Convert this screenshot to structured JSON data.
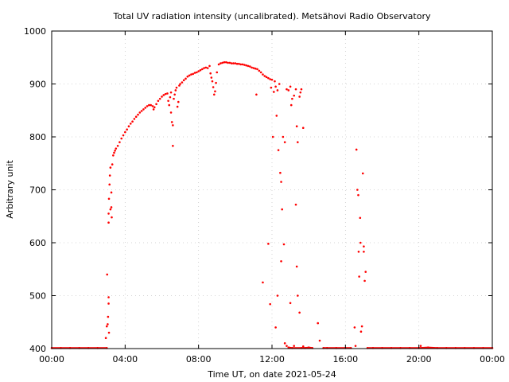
{
  "chart_data": {
    "type": "scatter",
    "title": "Total UV radiation intensity (uncalibrated). Metsähovi Radio Observatory",
    "xlabel": "Time UT, on date 2021-05-24",
    "ylabel": "Arbitrary unit",
    "xlim": [
      "00:00",
      "24:00"
    ],
    "ylim": [
      400,
      1000
    ],
    "x_ticks": [
      "00:00",
      "04:00",
      "08:00",
      "12:00",
      "16:00",
      "20:00",
      "00:00"
    ],
    "y_ticks": [
      400,
      500,
      600,
      700,
      800,
      900,
      1000
    ],
    "grid": true,
    "marker_color": "#ff0000",
    "series": [
      {
        "x_unit": "hours UT",
        "points": [
          [
            0.0,
            401
          ],
          [
            0.5,
            401
          ],
          [
            1.0,
            401
          ],
          [
            1.5,
            401
          ],
          [
            2.0,
            401
          ],
          [
            2.5,
            401
          ],
          [
            3.0,
            401
          ],
          [
            2.95,
            420
          ],
          [
            3.0,
            442
          ],
          [
            3.02,
            540
          ],
          [
            3.05,
            446
          ],
          [
            3.07,
            460
          ],
          [
            3.1,
            485
          ],
          [
            3.1,
            497
          ],
          [
            3.12,
            430
          ],
          [
            3.1,
            655
          ],
          [
            3.1,
            638
          ],
          [
            3.12,
            683
          ],
          [
            3.15,
            710
          ],
          [
            3.17,
            727
          ],
          [
            3.2,
            742
          ],
          [
            3.2,
            663
          ],
          [
            3.25,
            695
          ],
          [
            3.25,
            667
          ],
          [
            3.27,
            648
          ],
          [
            3.3,
            748
          ],
          [
            3.35,
            765
          ],
          [
            3.4,
            770
          ],
          [
            3.45,
            774
          ],
          [
            3.5,
            778
          ],
          [
            3.6,
            783
          ],
          [
            3.7,
            790
          ],
          [
            3.8,
            797
          ],
          [
            3.9,
            803
          ],
          [
            4.0,
            809
          ],
          [
            4.1,
            814
          ],
          [
            4.2,
            820
          ],
          [
            4.3,
            825
          ],
          [
            4.4,
            829
          ],
          [
            4.5,
            834
          ],
          [
            4.6,
            838
          ],
          [
            4.7,
            842
          ],
          [
            4.8,
            846
          ],
          [
            4.9,
            849
          ],
          [
            5.0,
            852
          ],
          [
            5.1,
            855
          ],
          [
            5.2,
            858
          ],
          [
            5.3,
            860
          ],
          [
            5.4,
            860
          ],
          [
            5.5,
            858
          ],
          [
            5.55,
            852
          ],
          [
            5.6,
            856
          ],
          [
            5.7,
            862
          ],
          [
            5.8,
            868
          ],
          [
            5.9,
            872
          ],
          [
            6.0,
            876
          ],
          [
            6.1,
            879
          ],
          [
            6.2,
            881
          ],
          [
            6.3,
            882
          ],
          [
            6.35,
            868
          ],
          [
            6.4,
            860
          ],
          [
            6.45,
            875
          ],
          [
            6.5,
            884
          ],
          [
            6.5,
            846
          ],
          [
            6.55,
            828
          ],
          [
            6.6,
            822
          ],
          [
            6.6,
            783
          ],
          [
            6.65,
            872
          ],
          [
            6.7,
            880
          ],
          [
            6.75,
            888
          ],
          [
            6.8,
            893
          ],
          [
            6.85,
            857
          ],
          [
            6.9,
            866
          ],
          [
            6.95,
            897
          ],
          [
            7.0,
            900
          ],
          [
            7.1,
            903
          ],
          [
            7.2,
            907
          ],
          [
            7.3,
            910
          ],
          [
            7.4,
            914
          ],
          [
            7.5,
            916
          ],
          [
            7.6,
            918
          ],
          [
            7.7,
            919
          ],
          [
            7.8,
            921
          ],
          [
            7.9,
            922
          ],
          [
            8.0,
            924
          ],
          [
            8.1,
            926
          ],
          [
            8.2,
            928
          ],
          [
            8.3,
            930
          ],
          [
            8.4,
            931
          ],
          [
            8.5,
            930
          ],
          [
            8.6,
            934
          ],
          [
            8.65,
            920
          ],
          [
            8.7,
            912
          ],
          [
            8.75,
            905
          ],
          [
            8.8,
            894
          ],
          [
            8.85,
            880
          ],
          [
            8.9,
            886
          ],
          [
            8.95,
            902
          ],
          [
            9.0,
            922
          ],
          [
            9.1,
            937
          ],
          [
            9.2,
            939
          ],
          [
            9.3,
            940
          ],
          [
            9.4,
            941
          ],
          [
            9.5,
            941
          ],
          [
            9.6,
            940
          ],
          [
            9.7,
            940
          ],
          [
            9.8,
            939
          ],
          [
            9.9,
            939
          ],
          [
            10.0,
            939
          ],
          [
            10.1,
            938
          ],
          [
            10.2,
            938
          ],
          [
            10.3,
            937
          ],
          [
            10.4,
            937
          ],
          [
            10.5,
            936
          ],
          [
            10.6,
            935
          ],
          [
            10.7,
            934
          ],
          [
            10.8,
            933
          ],
          [
            10.9,
            931
          ],
          [
            11.0,
            930
          ],
          [
            11.1,
            929
          ],
          [
            11.15,
            880
          ],
          [
            11.2,
            928
          ],
          [
            11.3,
            925
          ],
          [
            11.4,
            922
          ],
          [
            11.5,
            918
          ],
          [
            11.6,
            915
          ],
          [
            11.7,
            913
          ],
          [
            11.8,
            911
          ],
          [
            11.9,
            909
          ],
          [
            11.95,
            893
          ],
          [
            12.0,
            908
          ],
          [
            12.05,
            800
          ],
          [
            12.1,
            885
          ],
          [
            12.15,
            905
          ],
          [
            12.2,
            895
          ],
          [
            12.25,
            840
          ],
          [
            12.3,
            888
          ],
          [
            12.35,
            775
          ],
          [
            12.4,
            900
          ],
          [
            12.45,
            732
          ],
          [
            12.5,
            715
          ],
          [
            12.55,
            663
          ],
          [
            12.6,
            800
          ],
          [
            12.65,
            597
          ],
          [
            12.7,
            790
          ],
          [
            12.8,
            890
          ],
          [
            12.9,
            888
          ],
          [
            13.0,
            895
          ],
          [
            13.05,
            860
          ],
          [
            13.1,
            872
          ],
          [
            13.2,
            878
          ],
          [
            13.3,
            890
          ],
          [
            13.35,
            820
          ],
          [
            13.4,
            790
          ],
          [
            13.5,
            876
          ],
          [
            13.55,
            884
          ],
          [
            13.6,
            890
          ],
          [
            13.7,
            817
          ],
          [
            11.5,
            525
          ],
          [
            11.8,
            598
          ],
          [
            11.9,
            484
          ],
          [
            12.3,
            500
          ],
          [
            12.2,
            440
          ],
          [
            12.5,
            565
          ],
          [
            12.7,
            410
          ],
          [
            12.8,
            405
          ],
          [
            12.9,
            402
          ],
          [
            13.0,
            486
          ],
          [
            13.1,
            401
          ],
          [
            13.2,
            405
          ],
          [
            13.3,
            672
          ],
          [
            13.35,
            555
          ],
          [
            13.4,
            500
          ],
          [
            13.5,
            468
          ],
          [
            13.6,
            401
          ],
          [
            13.7,
            404
          ],
          [
            13.8,
            401
          ],
          [
            14.0,
            402
          ],
          [
            14.2,
            401
          ],
          [
            14.5,
            448
          ],
          [
            14.6,
            415
          ],
          [
            14.8,
            401
          ],
          [
            15.0,
            401
          ],
          [
            15.5,
            401
          ],
          [
            16.0,
            401
          ],
          [
            16.3,
            401
          ],
          [
            16.5,
            440
          ],
          [
            16.55,
            405
          ],
          [
            16.6,
            776
          ],
          [
            16.65,
            700
          ],
          [
            16.7,
            690
          ],
          [
            16.72,
            583
          ],
          [
            16.75,
            536
          ],
          [
            16.8,
            647
          ],
          [
            16.82,
            600
          ],
          [
            16.85,
            432
          ],
          [
            16.9,
            442
          ],
          [
            16.95,
            731
          ],
          [
            17.0,
            583
          ],
          [
            17.0,
            593
          ],
          [
            17.05,
            528
          ],
          [
            17.1,
            545
          ],
          [
            17.2,
            401
          ],
          [
            17.5,
            401
          ],
          [
            18.0,
            401
          ],
          [
            18.5,
            401
          ],
          [
            19.0,
            401
          ],
          [
            19.5,
            401
          ],
          [
            20.0,
            401
          ],
          [
            20.1,
            405
          ],
          [
            20.5,
            402
          ],
          [
            21.0,
            401
          ],
          [
            21.5,
            401
          ],
          [
            22.0,
            401
          ],
          [
            22.5,
            401
          ],
          [
            23.0,
            401
          ],
          [
            23.5,
            401
          ],
          [
            24.0,
            401
          ]
        ]
      }
    ]
  }
}
